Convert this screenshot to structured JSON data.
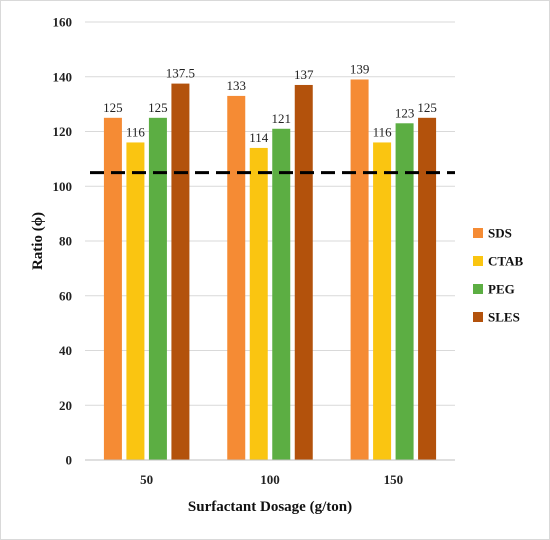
{
  "chart_data": {
    "type": "bar",
    "title": "",
    "xlabel": "Surfactant Dosage (g/ton)",
    "ylabel": "Ratio (ϕ)",
    "categories": [
      "50",
      "100",
      "150"
    ],
    "ylim": [
      0,
      160
    ],
    "yticks": [
      0,
      20,
      40,
      60,
      80,
      100,
      120,
      140,
      160
    ],
    "grid": true,
    "legend_position": "right",
    "reference_line": {
      "y": 105,
      "style": "dashed",
      "color": "#000000"
    },
    "series": [
      {
        "name": "SDS",
        "color": "#F58B34",
        "values": [
          125,
          133,
          139
        ],
        "labels": [
          "125",
          "133",
          "139"
        ]
      },
      {
        "name": "CTAB",
        "color": "#FAC511",
        "values": [
          116,
          114,
          116
        ],
        "labels": [
          "116",
          "114",
          "116"
        ]
      },
      {
        "name": "PEG",
        "color": "#5CAE43",
        "values": [
          125,
          121,
          123
        ],
        "labels": [
          "125",
          "121",
          "123"
        ]
      },
      {
        "name": "SLES",
        "color": "#B3520C",
        "values": [
          137.5,
          137,
          125
        ],
        "labels": [
          "137.5",
          "137",
          "125"
        ]
      }
    ]
  }
}
